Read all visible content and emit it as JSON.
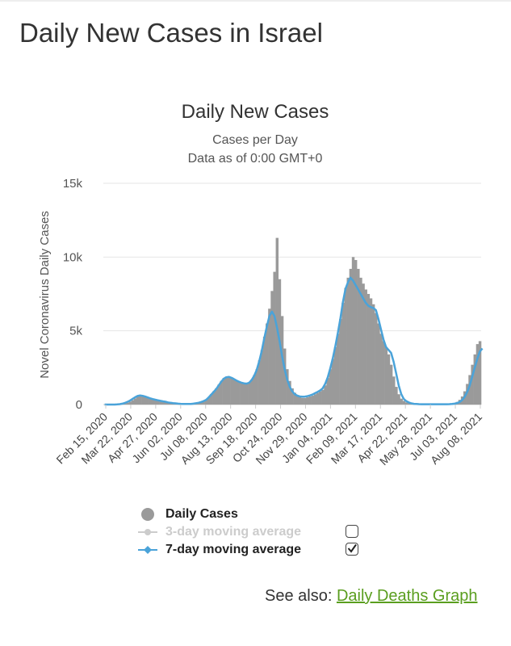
{
  "page": {
    "title": "Daily New Cases in Israel"
  },
  "colors": {
    "bars": "#9a9a9a",
    "avg7": "#4aa3d9",
    "avg3": "#cccccc",
    "grid": "#e6e6e6",
    "link": "#5a9e1f"
  },
  "chart_data": {
    "type": "bar",
    "title": "Daily New Cases",
    "subtitle_lines": [
      "Cases per Day",
      "Data as of 0:00 GMT+0"
    ],
    "ylabel": "Novel Coronavirus Daily Cases",
    "xlabel": "",
    "ylim": [
      0,
      15000
    ],
    "yticks": [
      0,
      5000,
      10000,
      15000
    ],
    "ytick_labels": [
      "0",
      "5k",
      "10k",
      "15k"
    ],
    "x_tick_labels": [
      "Feb 15, 2020",
      "Mar 22, 2020",
      "Apr 27, 2020",
      "Jun 02, 2020",
      "Jul 08, 2020",
      "Aug 13, 2020",
      "Sep 18, 2020",
      "Oct 24, 2020",
      "Nov 29, 2020",
      "Jan 04, 2021",
      "Feb 09, 2021",
      "Mar 17, 2021",
      "Apr 22, 2021",
      "May 28, 2021",
      "Jul 03, 2021",
      "Aug 08, 2021"
    ],
    "series": [
      {
        "name": "Daily Cases",
        "type": "bar",
        "values": [
          0,
          0,
          0,
          0,
          0,
          0,
          10,
          30,
          60,
          120,
          200,
          300,
          420,
          560,
          650,
          600,
          550,
          500,
          420,
          380,
          340,
          300,
          260,
          230,
          200,
          150,
          120,
          100,
          80,
          60,
          50,
          40,
          40,
          40,
          40,
          60,
          80,
          120,
          180,
          250,
          320,
          500,
          700,
          900,
          1100,
          1350,
          1600,
          1800,
          1900,
          1900,
          1850,
          1750,
          1650,
          1550,
          1500,
          1450,
          1400,
          1500,
          1700,
          2000,
          2400,
          3000,
          3700,
          4600,
          5500,
          6500,
          7700,
          9000,
          11300,
          8500,
          6000,
          3800,
          2400,
          1600,
          1100,
          800,
          600,
          500,
          450,
          450,
          500,
          550,
          600,
          700,
          800,
          900,
          1000,
          1300,
          1800,
          2400,
          3100,
          3900,
          4800,
          5800,
          6900,
          7900,
          8600,
          9200,
          10000,
          9800,
          9200,
          8600,
          8200,
          7800,
          7500,
          7200,
          6800,
          6200,
          5500,
          4800,
          4300,
          3900,
          3400,
          2700,
          1900,
          1200,
          700,
          400,
          250,
          150,
          100,
          60,
          40,
          30,
          20,
          20,
          20,
          20,
          20,
          20,
          20,
          20,
          20,
          20,
          20,
          30,
          40,
          60,
          100,
          180,
          320,
          550,
          900,
          1400,
          2000,
          2700,
          3400,
          4100,
          4300
        ]
      },
      {
        "name": "3-day moving average",
        "type": "line",
        "enabled": false
      },
      {
        "name": "7-day moving average",
        "type": "line",
        "enabled": true,
        "values": [
          0,
          0,
          0,
          0,
          0,
          10,
          30,
          60,
          110,
          180,
          270,
          380,
          490,
          580,
          620,
          590,
          540,
          480,
          420,
          370,
          330,
          290,
          250,
          220,
          190,
          150,
          120,
          100,
          80,
          60,
          50,
          45,
          40,
          40,
          45,
          60,
          85,
          120,
          170,
          230,
          310,
          470,
          660,
          850,
          1050,
          1300,
          1550,
          1750,
          1850,
          1880,
          1820,
          1730,
          1630,
          1550,
          1480,
          1440,
          1420,
          1480,
          1660,
          1950,
          2350,
          2950,
          3650,
          4500,
          5300,
          6000,
          6300,
          6000,
          5200,
          4300,
          3300,
          2400,
          1700,
          1200,
          900,
          700,
          600,
          550,
          530,
          540,
          570,
          620,
          680,
          770,
          860,
          960,
          1100,
          1400,
          1850,
          2450,
          3150,
          3950,
          4850,
          5850,
          6950,
          7850,
          8300,
          8600,
          8400,
          8100,
          7800,
          7500,
          7200,
          6900,
          6700,
          6600,
          6550,
          6400,
          5800,
          5100,
          4400,
          3900,
          3700,
          3500,
          2900,
          2100,
          1300,
          700,
          380,
          230,
          140,
          80,
          50,
          40,
          30,
          20,
          20,
          20,
          20,
          20,
          20,
          20,
          20,
          20,
          20,
          20,
          30,
          40,
          60,
          100,
          170,
          300,
          520,
          850,
          1300,
          1900,
          2500,
          3100,
          3600,
          3800
        ]
      }
    ]
  },
  "legend": {
    "items": [
      {
        "label": "Daily Cases"
      },
      {
        "label": "3-day moving average"
      },
      {
        "label": "7-day moving average"
      }
    ]
  },
  "see_also": {
    "prefix": "See also:",
    "link_label": "Daily Deaths Graph"
  }
}
